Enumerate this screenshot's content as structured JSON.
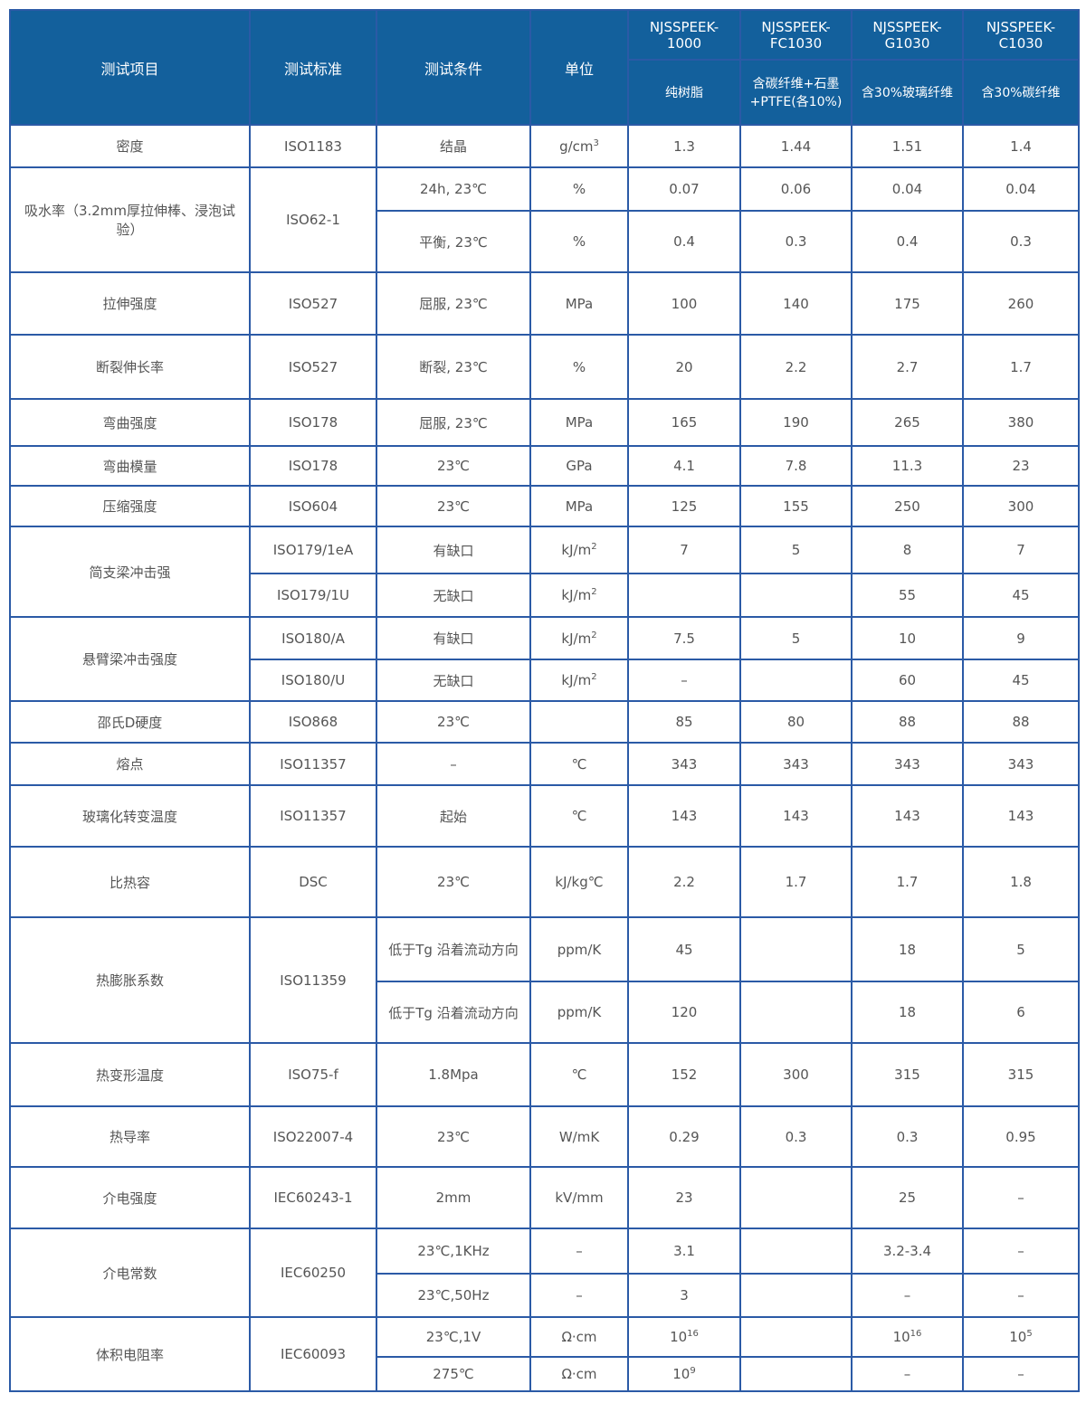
{
  "header": {
    "item": "测试项目",
    "standard": "测试标准",
    "condition": "测试条件",
    "unit": "单位",
    "models": [
      {
        "name": "NJSSPEEK-1000",
        "desc": "纯树脂"
      },
      {
        "name": "NJSSPEEK-FC1030",
        "desc": "含碳纤维+石墨+PTFE(各10%)"
      },
      {
        "name": "NJSSPEEK-G1030",
        "desc": "含30%玻璃纤维"
      },
      {
        "name": "NJSSPEEK-C1030",
        "desc": "含30%碳纤维"
      }
    ]
  },
  "colors": {
    "header_bg": "#13609c",
    "border": "#2b5aa6",
    "text": "#555555"
  },
  "rows": [
    {
      "item": "密度",
      "item_span": 1,
      "standard": "ISO1183",
      "std_span": 1,
      "condition": "结晶",
      "unit": {
        "t": "g/cm",
        "sup": "3"
      },
      "values": [
        "1.3",
        "1.44",
        "1.51",
        "1.4"
      ]
    },
    {
      "item": "吸水率（3.2mm厚拉伸棒、浸泡试验）",
      "item_span": 2,
      "standard": "ISO62-1",
      "std_span": 2,
      "condition": "24h, 23℃",
      "unit": "%",
      "values": [
        "0.07",
        "0.06",
        "0.04",
        "0.04"
      ]
    },
    {
      "condition": "平衡, 23℃",
      "unit": "%",
      "values": [
        "0.4",
        "0.3",
        "0.4",
        "0.3"
      ]
    },
    {
      "item": "拉伸强度",
      "item_span": 1,
      "standard": "ISO527",
      "std_span": 1,
      "condition": "屈服, 23℃",
      "unit": "MPa",
      "values": [
        "100",
        "140",
        "175",
        "260"
      ]
    },
    {
      "item": "断裂伸长率",
      "item_span": 1,
      "standard": "ISO527",
      "std_span": 1,
      "condition": "断裂, 23℃",
      "unit": "%",
      "values": [
        "20",
        "2.2",
        "2.7",
        "1.7"
      ]
    },
    {
      "item": "弯曲强度",
      "item_span": 1,
      "standard": "ISO178",
      "std_span": 1,
      "condition": "屈服, 23℃",
      "unit": "MPa",
      "values": [
        "165",
        "190",
        "265",
        "380"
      ]
    },
    {
      "item": "弯曲模量",
      "item_span": 1,
      "standard": "ISO178",
      "std_span": 1,
      "condition": "23℃",
      "unit": "GPa",
      "values": [
        "4.1",
        "7.8",
        "11.3",
        "23"
      ]
    },
    {
      "item": "压缩强度",
      "item_span": 1,
      "standard": "ISO604",
      "std_span": 1,
      "condition": "23℃",
      "unit": "MPa",
      "values": [
        "125",
        "155",
        "250",
        "300"
      ]
    },
    {
      "item": "简支梁冲击强",
      "item_span": 2,
      "standard": "ISO179/1eA",
      "std_span": 1,
      "condition": "有缺口",
      "unit": {
        "t": "kJ/m",
        "sup": "2"
      },
      "values": [
        "7",
        "5",
        "8",
        "7"
      ]
    },
    {
      "standard": "ISO179/1U",
      "std_span": 1,
      "condition": "无缺口",
      "unit": {
        "t": "kJ/m",
        "sup": "2"
      },
      "values": [
        "",
        "",
        "55",
        "45"
      ]
    },
    {
      "item": "悬臂梁冲击强度",
      "item_span": 2,
      "standard": "ISO180/A",
      "std_span": 1,
      "condition": "有缺口",
      "unit": {
        "t": "kJ/m",
        "sup": "2"
      },
      "values": [
        "7.5",
        "5",
        "10",
        "9"
      ]
    },
    {
      "standard": "ISO180/U",
      "std_span": 1,
      "condition": "无缺口",
      "unit": {
        "t": "kJ/m",
        "sup": "2"
      },
      "values": [
        "–",
        "",
        "60",
        "45"
      ]
    },
    {
      "item": "邵氏D硬度",
      "item_span": 1,
      "standard": "ISO868",
      "std_span": 1,
      "condition": "23℃",
      "unit": "",
      "values": [
        "85",
        "80",
        "88",
        "88"
      ]
    },
    {
      "item": "熔点",
      "item_span": 1,
      "standard": "ISO11357",
      "std_span": 1,
      "condition": "–",
      "unit": "℃",
      "values": [
        "343",
        "343",
        "343",
        "343"
      ]
    },
    {
      "item": "玻璃化转变温度",
      "item_span": 1,
      "standard": "ISO11357",
      "std_span": 1,
      "condition": "起始",
      "unit": "℃",
      "values": [
        "143",
        "143",
        "143",
        "143"
      ]
    },
    {
      "item": "比热容",
      "item_span": 1,
      "standard": "DSC",
      "std_span": 1,
      "condition": "23℃",
      "unit": "kJ/kg℃",
      "values": [
        "2.2",
        "1.7",
        "1.7",
        "1.8"
      ]
    },
    {
      "item": "热膨胀系数",
      "item_span": 2,
      "standard": "ISO11359",
      "std_span": 2,
      "condition": "低于Tg 沿着流动方向",
      "unit": "ppm/K",
      "values": [
        "45",
        "",
        "18",
        "5"
      ]
    },
    {
      "condition": "低于Tg 沿着流动方向",
      "unit": "ppm/K",
      "values": [
        "120",
        "",
        "18",
        "6"
      ]
    },
    {
      "item": "热变形温度",
      "item_span": 1,
      "standard": "ISO75-f",
      "std_span": 1,
      "condition": "1.8Mpa",
      "unit": "℃",
      "values": [
        "152",
        "300",
        "315",
        "315"
      ]
    },
    {
      "item": "热导率",
      "item_span": 1,
      "standard": "ISO22007-4",
      "std_span": 1,
      "condition": "23℃",
      "unit": "W/mK",
      "values": [
        "0.29",
        "0.3",
        "0.3",
        "0.95"
      ]
    },
    {
      "item": "介电强度",
      "item_span": 1,
      "standard": "IEC60243-1",
      "std_span": 1,
      "condition": "2mm",
      "unit": "kV/mm",
      "values": [
        "23",
        "",
        "25",
        "–"
      ]
    },
    {
      "item": "介电常数",
      "item_span": 2,
      "standard": "IEC60250",
      "std_span": 2,
      "condition": "23℃,1KHz",
      "unit": "–",
      "values": [
        "3.1",
        "",
        "3.2-3.4",
        "–"
      ]
    },
    {
      "condition": "23℃,50Hz",
      "unit": "–",
      "values": [
        "3",
        "",
        "–",
        "–"
      ]
    },
    {
      "item": "体积电阻率",
      "item_span": 2,
      "standard": "IEC60093",
      "std_span": 2,
      "condition": "23℃,1V",
      "unit": "Ω·cm",
      "values": [
        {
          "t": "10",
          "sup": "16"
        },
        "",
        {
          "t": "10",
          "sup": "16"
        },
        {
          "t": "10",
          "sup": "5"
        }
      ]
    },
    {
      "condition": "275℃",
      "unit": "Ω·cm",
      "values": [
        {
          "t": "10",
          "sup": "9"
        },
        "",
        "–",
        "–"
      ]
    }
  ]
}
